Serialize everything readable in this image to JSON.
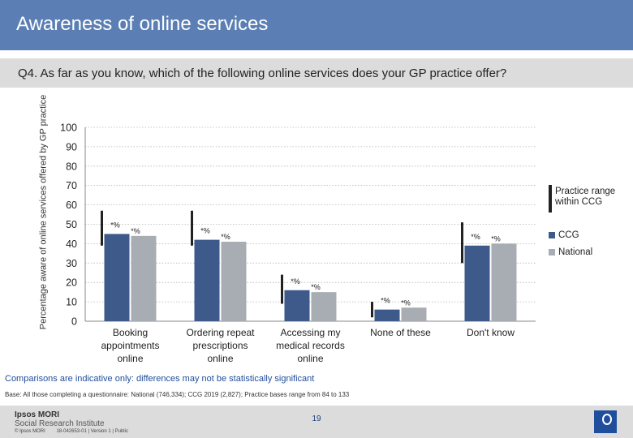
{
  "header": {
    "title": "Awareness of online services"
  },
  "question": "Q4. As far as you know, which of the following online services does your GP practice offer?",
  "comparisons_note": "Comparisons are indicative only: differences may not be statistically significant",
  "base_note": "Base: All those completing a questionnaire: National (746,334); CCG 2019 (2,827); Practice bases range from 84 to 133",
  "footer": {
    "brand": "Ipsos MORI",
    "division": "Social Research Institute",
    "page_number": "19",
    "copyright": "© Ipsos MORI",
    "job_ref": "18-042653-01 | Version 1 | Public"
  },
  "colors": {
    "ccg": "#3d5a8a",
    "national": "#a8adb3",
    "range": "#222222",
    "title_bar": "#5b7fb4"
  },
  "chart_data": {
    "type": "bar",
    "ylabel": "Percentage aware of online services offered by GP practice",
    "ylim": [
      0,
      100
    ],
    "yticks": [
      "0",
      "10",
      "20",
      "30",
      "40",
      "50",
      "60",
      "70",
      "80",
      "90",
      "100"
    ],
    "grid": true,
    "categories": [
      "Booking appointments online",
      "Ordering repeat prescriptions online",
      "Accessing my medical records online",
      "None of these",
      "Don't know"
    ],
    "category_lines": [
      [
        "Booking",
        "appointments",
        "online"
      ],
      [
        "Ordering repeat",
        "prescriptions",
        "online"
      ],
      [
        "Accessing my",
        "medical records",
        "online"
      ],
      [
        "None of these"
      ],
      [
        "Don't know"
      ]
    ],
    "series": [
      {
        "name": "CCG",
        "values": [
          45,
          42,
          16,
          6,
          39
        ],
        "labels": [
          "*%",
          "*%",
          "*%",
          "*%",
          "*%"
        ]
      },
      {
        "name": "National",
        "values": [
          44,
          41,
          15,
          7,
          40
        ],
        "labels": [
          "*%",
          "*%",
          "*%",
          "*%",
          "*%"
        ]
      }
    ],
    "practice_range": [
      [
        39,
        57
      ],
      [
        39,
        57
      ],
      [
        9,
        24
      ],
      [
        2,
        10
      ],
      [
        30,
        51
      ]
    ],
    "legend": {
      "range_label": "Practice range within CCG",
      "placement": "right"
    }
  }
}
